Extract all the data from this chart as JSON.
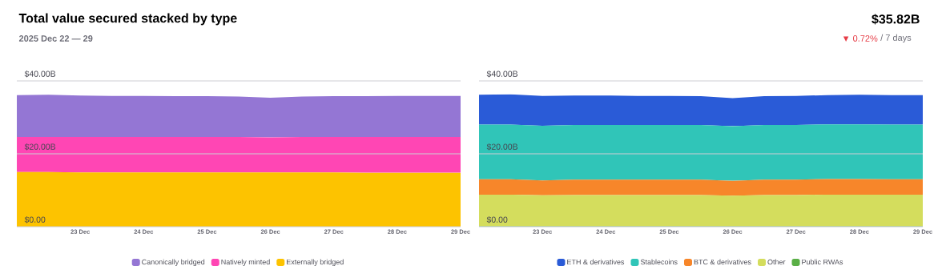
{
  "chart_data": [
    {
      "type": "area",
      "stacked": true,
      "title": "Total value secured stacked by type",
      "subtitle": "2025 Dec 22 — 29",
      "annotations": [
        "$35.82B",
        "▼ 0.72%",
        "/ 7 days"
      ],
      "x": [
        "2025-12-22T00:00",
        "2025-12-22T12:00",
        "2025-12-23T00:00",
        "2025-12-23T12:00",
        "2025-12-24T00:00",
        "2025-12-24T12:00",
        "2025-12-25T00:00",
        "2025-12-25T12:00",
        "2025-12-26T00:00",
        "2025-12-26T12:00",
        "2025-12-27T00:00",
        "2025-12-27T12:00",
        "2025-12-28T00:00",
        "2025-12-28T12:00",
        "2025-12-29T00:00"
      ],
      "series": [
        {
          "name": "Externally bridged",
          "color": "#fdc300",
          "values": [
            15.0,
            15.0,
            14.9,
            14.9,
            14.9,
            14.9,
            14.9,
            14.9,
            14.9,
            14.9,
            14.9,
            14.8,
            14.8,
            14.8,
            14.8
          ]
        },
        {
          "name": "Natively minted",
          "color": "#ff46b4",
          "values": [
            9.6,
            9.6,
            9.7,
            9.7,
            9.7,
            9.7,
            9.7,
            9.7,
            9.6,
            9.7,
            9.7,
            9.8,
            9.8,
            9.8,
            9.8
          ]
        },
        {
          "name": "Canonically bridged",
          "color": "#9476d4",
          "values": [
            11.5,
            11.6,
            11.4,
            11.3,
            11.3,
            11.2,
            11.2,
            11.1,
            10.9,
            11.1,
            11.2,
            11.2,
            11.3,
            11.3,
            11.3
          ]
        }
      ],
      "xlim": [
        "2025-12-22T00:00",
        "2025-12-29T00:00"
      ],
      "xticks": [
        {
          "value": "2025-12-23",
          "label": "23 Dec"
        },
        {
          "value": "2025-12-24",
          "label": "24 Dec"
        },
        {
          "value": "2025-12-25",
          "label": "25 Dec"
        },
        {
          "value": "2025-12-26",
          "label": "26 Dec"
        },
        {
          "value": "2025-12-27",
          "label": "27 Dec"
        },
        {
          "value": "2025-12-28",
          "label": "28 Dec"
        },
        {
          "value": "2025-12-29",
          "label": "29 Dec"
        }
      ],
      "ylim": [
        0,
        40
      ],
      "yticks": [
        {
          "value": 0,
          "label": "$0.00"
        },
        {
          "value": 20,
          "label": "$20.00B"
        },
        {
          "value": 40,
          "label": "$40.00B"
        }
      ],
      "grid": "y",
      "legend": "bottom"
    },
    {
      "type": "area",
      "stacked": true,
      "x": [
        "2025-12-22T00:00",
        "2025-12-22T12:00",
        "2025-12-23T00:00",
        "2025-12-23T12:00",
        "2025-12-24T00:00",
        "2025-12-24T12:00",
        "2025-12-25T00:00",
        "2025-12-25T12:00",
        "2025-12-26T00:00",
        "2025-12-26T12:00",
        "2025-12-27T00:00",
        "2025-12-27T12:00",
        "2025-12-28T00:00",
        "2025-12-28T12:00",
        "2025-12-29T00:00"
      ],
      "series": [
        {
          "name": "Public RWAs",
          "color": "#5aaf46",
          "values": [
            0.1,
            0.1,
            0.1,
            0.1,
            0.1,
            0.1,
            0.1,
            0.1,
            0.1,
            0.1,
            0.1,
            0.1,
            0.1,
            0.1,
            0.1
          ]
        },
        {
          "name": "Other",
          "color": "#d4dd5d",
          "values": [
            8.7,
            8.7,
            8.5,
            8.6,
            8.6,
            8.6,
            8.6,
            8.6,
            8.4,
            8.6,
            8.6,
            8.7,
            8.7,
            8.7,
            8.7
          ]
        },
        {
          "name": "BTC & derivatives",
          "color": "#f7862a",
          "values": [
            4.2,
            4.2,
            4.1,
            4.2,
            4.2,
            4.2,
            4.2,
            4.2,
            4.1,
            4.2,
            4.2,
            4.3,
            4.3,
            4.2,
            4.2
          ]
        },
        {
          "name": "Stablecoins",
          "color": "#30c5b8",
          "values": [
            15.0,
            15.0,
            15.0,
            15.0,
            15.0,
            15.0,
            15.0,
            15.0,
            15.0,
            15.0,
            15.0,
            15.0,
            15.0,
            15.0,
            15.0
          ]
        },
        {
          "name": "ETH & derivatives",
          "color": "#2a5bd7",
          "values": [
            8.2,
            8.3,
            8.2,
            8.1,
            8.1,
            8.0,
            8.0,
            7.9,
            7.7,
            7.9,
            8.0,
            8.0,
            8.1,
            8.1,
            8.1
          ]
        }
      ],
      "xlim": [
        "2025-12-22T00:00",
        "2025-12-29T00:00"
      ],
      "xticks": [
        {
          "value": "2025-12-23",
          "label": "23 Dec"
        },
        {
          "value": "2025-12-24",
          "label": "24 Dec"
        },
        {
          "value": "2025-12-25",
          "label": "25 Dec"
        },
        {
          "value": "2025-12-26",
          "label": "26 Dec"
        },
        {
          "value": "2025-12-27",
          "label": "27 Dec"
        },
        {
          "value": "2025-12-28",
          "label": "28 Dec"
        },
        {
          "value": "2025-12-29",
          "label": "29 Dec"
        }
      ],
      "ylim": [
        0,
        40
      ],
      "yticks": [
        {
          "value": 0,
          "label": "$0.00"
        },
        {
          "value": 20,
          "label": "$20.00B"
        },
        {
          "value": 40,
          "label": "$40.00B"
        }
      ],
      "grid": "y",
      "legend": "bottom"
    }
  ]
}
